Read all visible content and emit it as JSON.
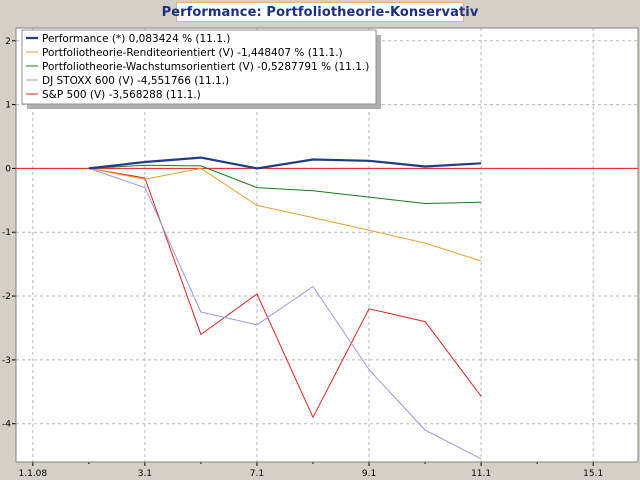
{
  "chart_data": {
    "type": "line",
    "title": "Performance: Portfoliotheorie-Konservativ",
    "xlabel": "",
    "ylabel": "",
    "ylim": [
      -4.6,
      2.2
    ],
    "yticks": [
      2,
      1,
      0,
      -1,
      -2,
      -3,
      -4
    ],
    "xticks": [
      {
        "label": "1.1.08",
        "i": 0
      },
      {
        "label": "3.1",
        "i": 2
      },
      {
        "label": "7.1",
        "i": 4
      },
      {
        "label": "9.1",
        "i": 6
      },
      {
        "label": "11.1",
        "i": 8
      },
      {
        "label": "15.1",
        "i": 10
      }
    ],
    "xrange": [
      -0.3,
      10.8
    ],
    "grid": true,
    "legend_position": "top-left",
    "series": [
      {
        "name": "Performance (*) 0,083424 % (11.1.)",
        "color": "#1f3c88",
        "width": 2.2,
        "x": [
          1,
          2,
          3,
          4,
          5,
          6,
          7,
          8
        ],
        "values": [
          0,
          0.1,
          0.17,
          0.0,
          0.14,
          0.12,
          0.03,
          0.08
        ]
      },
      {
        "name": "Portfoliotheorie-Renditeorientiert (V) -1,448407 % (11.1.)",
        "color": "#e8a030",
        "width": 1,
        "x": [
          1,
          2,
          3,
          4,
          5,
          6,
          7,
          8
        ],
        "values": [
          0,
          -0.17,
          0.0,
          -0.58,
          -0.77,
          -0.97,
          -1.17,
          -1.45
        ]
      },
      {
        "name": "Portfoliotheorie-Wachstumsorientiert (V) -0,5287791 % (11.1.)",
        "color": "#1f7a1f",
        "width": 1,
        "x": [
          1,
          2,
          3,
          4,
          5,
          6,
          7,
          8
        ],
        "values": [
          0,
          0.05,
          0.04,
          -0.3,
          -0.35,
          -0.45,
          -0.55,
          -0.53
        ]
      },
      {
        "name": "DJ STOXX 600 (V) -4,551766 (11.1.)",
        "color": "#9999dd",
        "width": 1,
        "x": [
          1,
          2,
          3,
          4,
          5,
          6,
          7,
          8
        ],
        "values": [
          0,
          -0.3,
          -2.25,
          -2.45,
          -1.85,
          -3.15,
          -4.1,
          -4.55
        ]
      },
      {
        "name": "S&P 500 (V) -3,568288 (11.1.)",
        "color": "#dd2222",
        "width": 1,
        "x": [
          1,
          2,
          3,
          4,
          5,
          6,
          7,
          8
        ],
        "values": [
          0,
          -0.15,
          -2.6,
          -1.97,
          -3.9,
          -2.2,
          -2.4,
          -3.57
        ]
      }
    ]
  }
}
